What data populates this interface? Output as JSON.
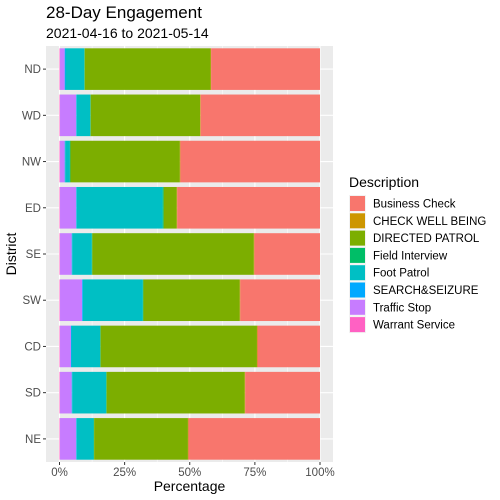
{
  "chart_data": {
    "type": "bar",
    "orientation": "horizontal",
    "stacked": true,
    "title": "28-Day Engagement",
    "subtitle": "2021-04-16 to 2021-05-14",
    "xlabel": "Percentage",
    "ylabel": "District",
    "xlim": [
      0,
      1
    ],
    "x_ticks": [
      0,
      0.25,
      0.5,
      0.75,
      1
    ],
    "x_tick_labels": [
      "0%",
      "25%",
      "50%",
      "75%",
      "100%"
    ],
    "grid": true,
    "legend": {
      "title": "Description",
      "position": "right"
    },
    "categories": [
      "ND",
      "WD",
      "NW",
      "ED",
      "SE",
      "SW",
      "CD",
      "SD",
      "NE"
    ],
    "series": [
      {
        "name": "Warrant Service",
        "color": "#FF61C3",
        "values": [
          0.002,
          0.002,
          0.002,
          0.002,
          0.002,
          0.002,
          0.002,
          0.002,
          0.002
        ]
      },
      {
        "name": "Traffic Stop",
        "color": "#C77CFF",
        "values": [
          0.018,
          0.062,
          0.018,
          0.062,
          0.045,
          0.085,
          0.042,
          0.045,
          0.062
        ]
      },
      {
        "name": "SEARCH&SEIZURE",
        "color": "#00A9FF",
        "values": [
          0.003,
          0.002,
          0.002,
          0.002,
          0.002,
          0.003,
          0.002,
          0.002,
          0.002
        ]
      },
      {
        "name": "Foot Patrol",
        "color": "#00BFC4",
        "values": [
          0.072,
          0.052,
          0.018,
          0.33,
          0.075,
          0.23,
          0.11,
          0.13,
          0.065
        ]
      },
      {
        "name": "Field Interview",
        "color": "#00BE67",
        "values": [
          0.002,
          0.002,
          0.002,
          0.004,
          0.002,
          0.002,
          0.002,
          0.002,
          0.002
        ]
      },
      {
        "name": "DIRECTED PATROL",
        "color": "#7CAE00",
        "values": [
          0.483,
          0.42,
          0.42,
          0.05,
          0.62,
          0.37,
          0.6,
          0.53,
          0.36
        ]
      },
      {
        "name": "CHECK WELL BEING",
        "color": "#CD9600",
        "values": [
          0.002,
          0.002,
          0.002,
          0.002,
          0.002,
          0.002,
          0.002,
          0.002,
          0.002
        ]
      },
      {
        "name": "Business Check",
        "color": "#F8766D",
        "values": [
          0.418,
          0.458,
          0.536,
          0.548,
          0.252,
          0.306,
          0.24,
          0.287,
          0.505
        ]
      }
    ],
    "legend_order": [
      "Business Check",
      "CHECK WELL BEING",
      "DIRECTED PATROL",
      "Field Interview",
      "Foot Patrol",
      "SEARCH&SEIZURE",
      "Traffic Stop",
      "Warrant Service"
    ]
  }
}
